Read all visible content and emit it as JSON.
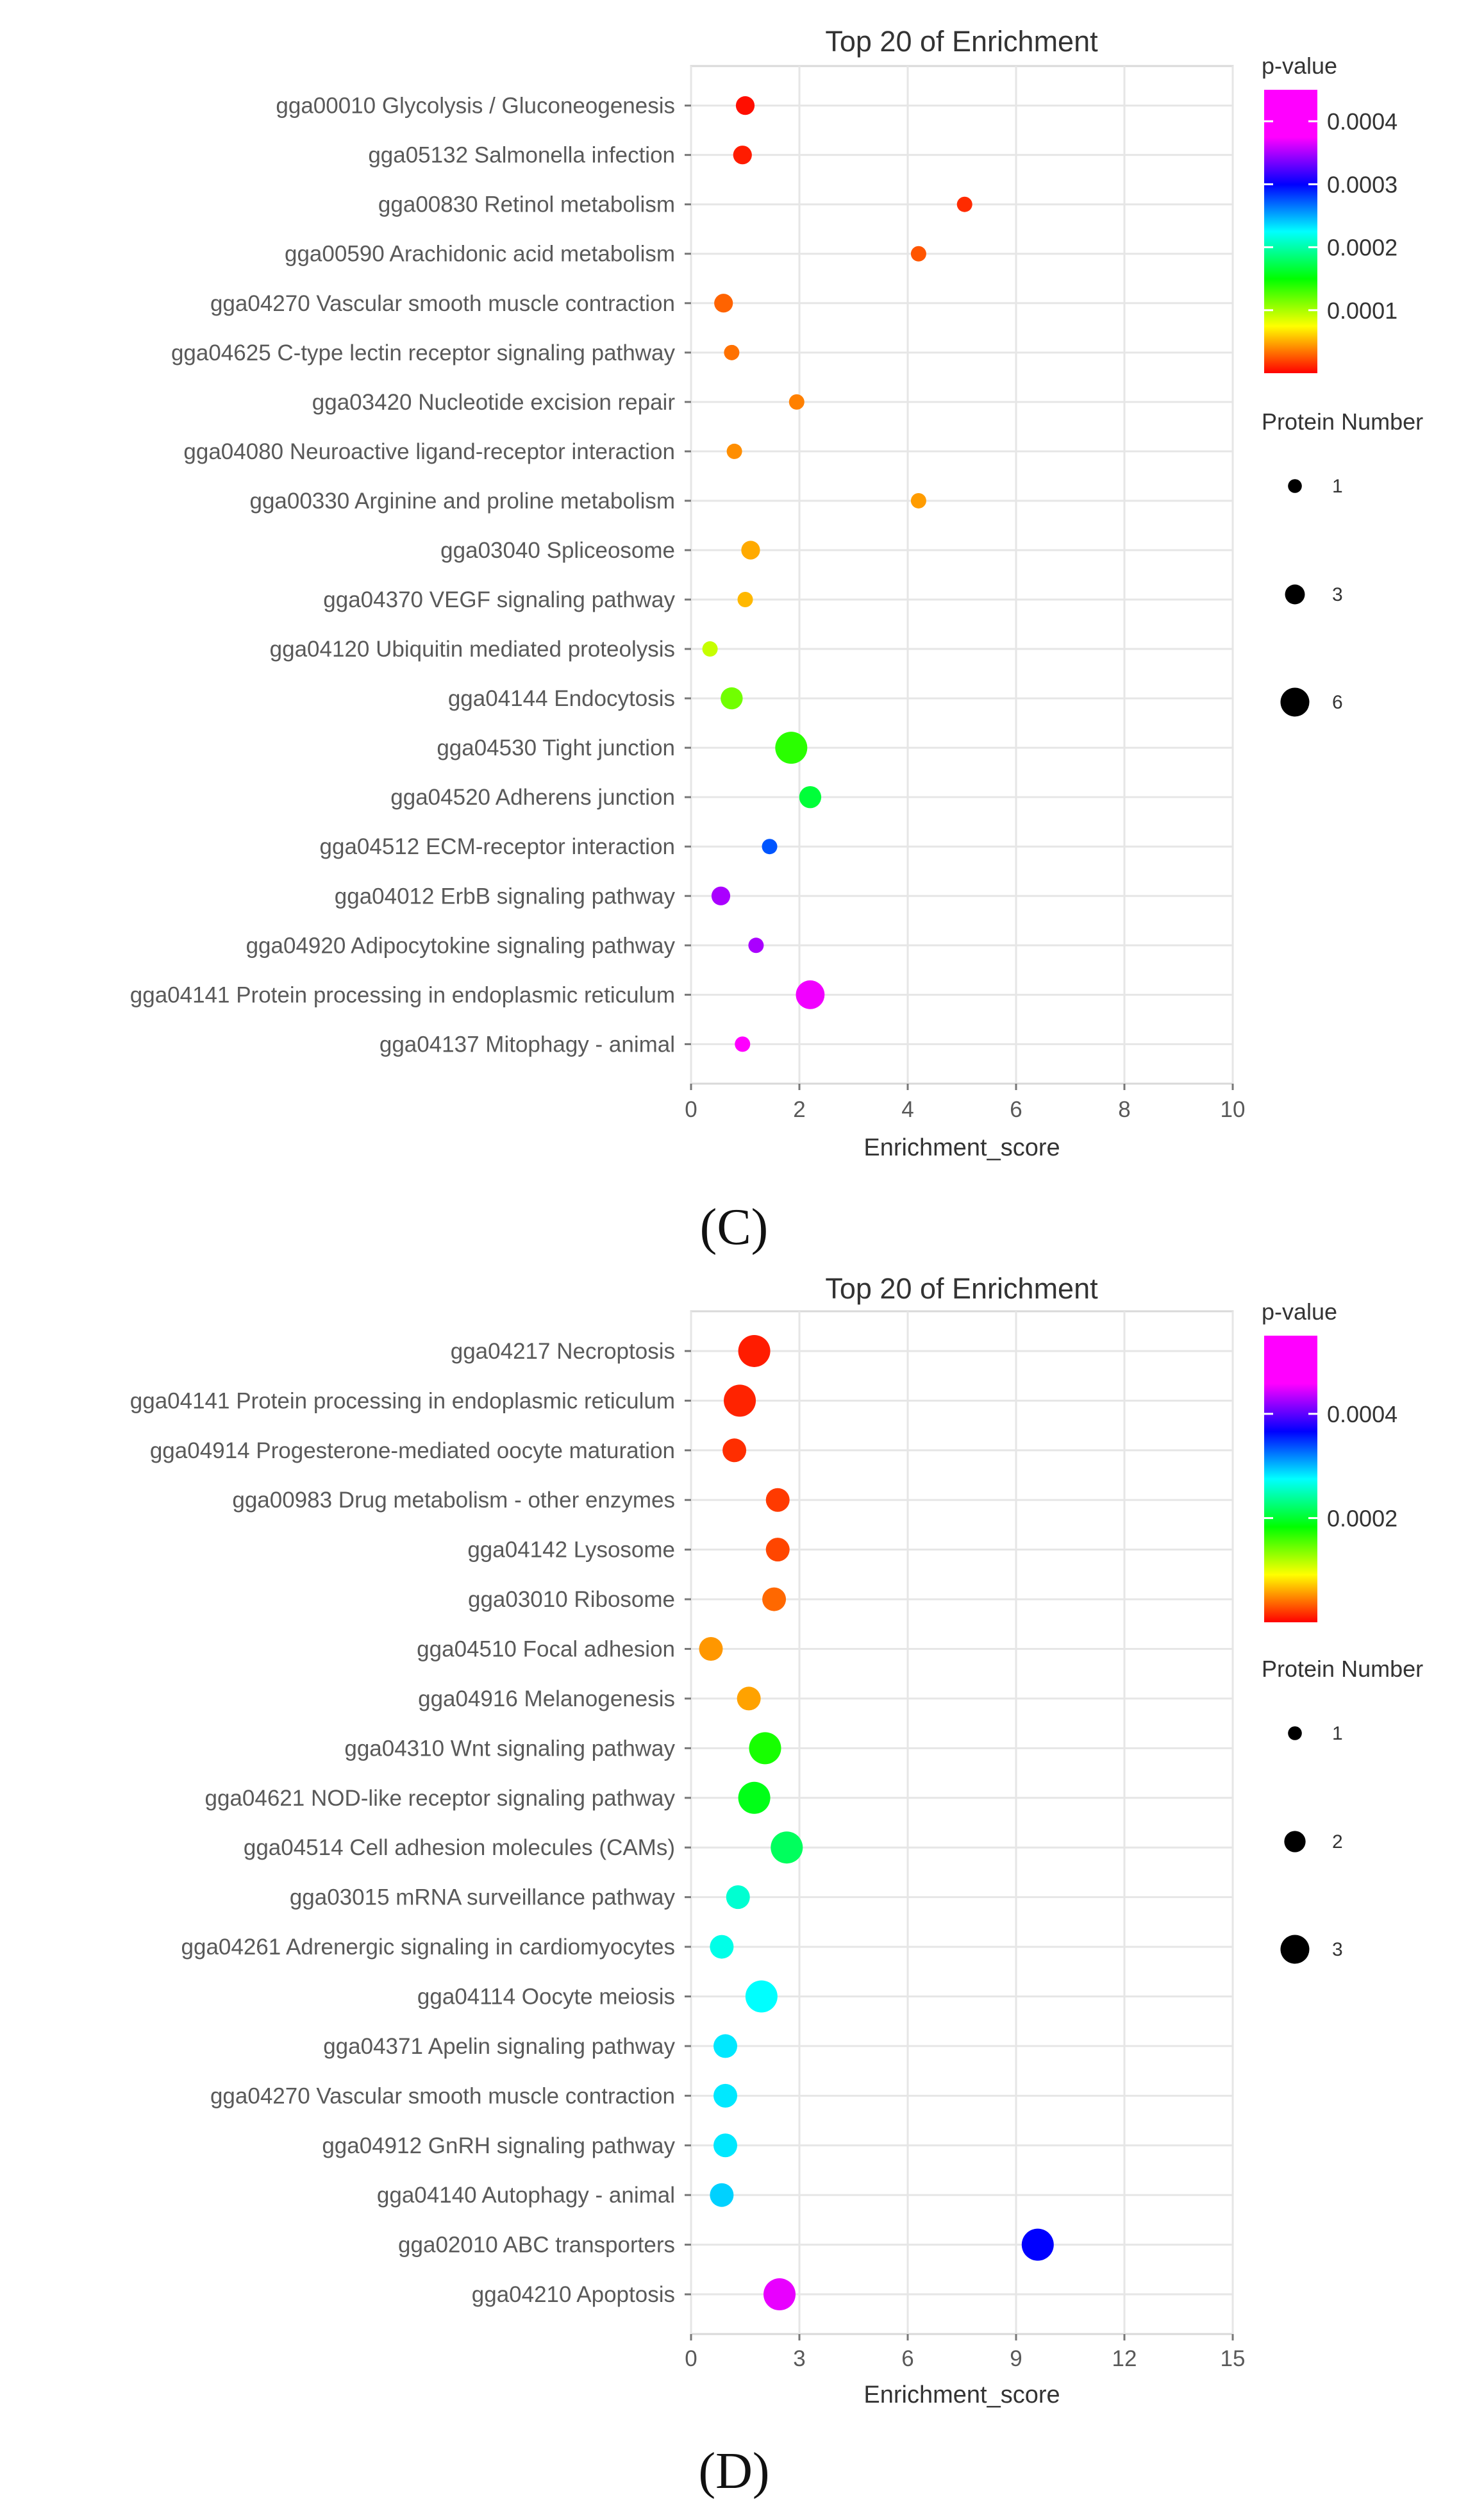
{
  "chart_data": [
    {
      "type": "scatter",
      "panel_label": "(C)",
      "title": "Top 20 of  Enrichment",
      "xlabel": "Enrichment_score",
      "ylabel": "",
      "xlim": [
        0,
        10
      ],
      "xticks": [
        0,
        2,
        4,
        6,
        8,
        10
      ],
      "grid": true,
      "legend_position": "right",
      "color_legend": {
        "title": "p-value",
        "min": 0.0,
        "max": 0.00045,
        "ticks": [
          {
            "value": 0.0001,
            "label": "0.0001"
          },
          {
            "value": 0.0002,
            "label": "0.0002"
          },
          {
            "value": 0.0003,
            "label": "0.0003"
          },
          {
            "value": 0.0004,
            "label": "0.0004"
          }
        ]
      },
      "size_legend": {
        "title": "Protein Number",
        "min": 1,
        "max": 6,
        "entries": [
          {
            "value": 1,
            "label": "1"
          },
          {
            "value": 3,
            "label": "3"
          },
          {
            "value": 6,
            "label": "6"
          }
        ]
      },
      "points": [
        {
          "term": "gga00010 Glycolysis / Gluconeogenesis",
          "x": 1.0,
          "pvalue": 5e-06,
          "proteins": 2
        },
        {
          "term": "gga05132 Salmonella infection",
          "x": 0.95,
          "pvalue": 1e-05,
          "proteins": 2
        },
        {
          "term": "gga00830 Retinol metabolism",
          "x": 5.05,
          "pvalue": 1.5e-05,
          "proteins": 1
        },
        {
          "term": "gga00590 Arachidonic acid metabolism",
          "x": 4.2,
          "pvalue": 3e-05,
          "proteins": 1
        },
        {
          "term": "gga04270 Vascular smooth muscle contraction",
          "x": 0.6,
          "pvalue": 3.5e-05,
          "proteins": 2
        },
        {
          "term": "gga04625 C-type lectin receptor signaling pathway",
          "x": 0.75,
          "pvalue": 4e-05,
          "proteins": 1
        },
        {
          "term": "gga03420 Nucleotide excision repair",
          "x": 1.95,
          "pvalue": 4.5e-05,
          "proteins": 1
        },
        {
          "term": "gga04080 Neuroactive ligand-receptor interaction",
          "x": 0.8,
          "pvalue": 5e-05,
          "proteins": 1
        },
        {
          "term": "gga00330 Arginine and proline metabolism",
          "x": 4.2,
          "pvalue": 5.5e-05,
          "proteins": 1
        },
        {
          "term": "gga03040 Spliceosome",
          "x": 1.1,
          "pvalue": 6e-05,
          "proteins": 2
        },
        {
          "term": "gga04370 VEGF signaling pathway",
          "x": 1.0,
          "pvalue": 6.5e-05,
          "proteins": 1
        },
        {
          "term": "gga04120 Ubiquitin mediated proteolysis",
          "x": 0.35,
          "pvalue": 0.00011,
          "proteins": 1
        },
        {
          "term": "gga04144 Endocytosis",
          "x": 0.75,
          "pvalue": 0.00014,
          "proteins": 3
        },
        {
          "term": "gga04530 Tight junction",
          "x": 1.85,
          "pvalue": 0.000165,
          "proteins": 6
        },
        {
          "term": "gga04520 Adherens junction",
          "x": 2.2,
          "pvalue": 0.0002,
          "proteins": 3
        },
        {
          "term": "gga04512 ECM-receptor interaction",
          "x": 1.45,
          "pvalue": 0.00033,
          "proteins": 1
        },
        {
          "term": "gga04012 ErbB signaling pathway",
          "x": 0.55,
          "pvalue": 0.00042,
          "proteins": 2
        },
        {
          "term": "gga04920 Adipocytokine signaling pathway",
          "x": 1.2,
          "pvalue": 0.00042,
          "proteins": 1
        },
        {
          "term": "gga04141 Protein processing in endoplasmic reticulum",
          "x": 2.2,
          "pvalue": 0.000445,
          "proteins": 5
        },
        {
          "term": "gga04137 Mitophagy - animal",
          "x": 0.95,
          "pvalue": 0.00045,
          "proteins": 1
        }
      ]
    },
    {
      "type": "scatter",
      "panel_label": "(D)",
      "title": "Top 20 of  Enrichment",
      "xlabel": "Enrichment_score",
      "ylabel": "",
      "xlim": [
        0,
        15
      ],
      "xticks": [
        0,
        3,
        6,
        9,
        12,
        15
      ],
      "grid": true,
      "legend_position": "right",
      "color_legend": {
        "title": "p-value",
        "min": 0.0,
        "max": 0.00055,
        "ticks": [
          {
            "value": 0.0002,
            "label": "0.0002"
          },
          {
            "value": 0.0004,
            "label": "0.0004"
          }
        ]
      },
      "size_legend": {
        "title": "Protein Number",
        "min": 1,
        "max": 3,
        "entries": [
          {
            "value": 1,
            "label": "1"
          },
          {
            "value": 2,
            "label": "2"
          },
          {
            "value": 3,
            "label": "3"
          }
        ]
      },
      "points": [
        {
          "term": "gga04217 Necroptosis",
          "x": 1.75,
          "pvalue": 1.2e-05,
          "proteins": 3
        },
        {
          "term": "gga04141 Protein processing in endoplasmic reticulum",
          "x": 1.35,
          "pvalue": 1.5e-05,
          "proteins": 3
        },
        {
          "term": "gga04914 Progesterone-mediated oocyte maturation",
          "x": 1.2,
          "pvalue": 2e-05,
          "proteins": 2
        },
        {
          "term": "gga00983 Drug metabolism - other enzymes",
          "x": 2.4,
          "pvalue": 2.5e-05,
          "proteins": 2
        },
        {
          "term": "gga04142 Lysosome",
          "x": 2.4,
          "pvalue": 3e-05,
          "proteins": 2
        },
        {
          "term": "gga03010 Ribosome",
          "x": 2.3,
          "pvalue": 4.5e-05,
          "proteins": 2
        },
        {
          "term": "gga04510 Focal adhesion",
          "x": 0.55,
          "pvalue": 6.5e-05,
          "proteins": 2
        },
        {
          "term": "gga04916 Melanogenesis",
          "x": 1.6,
          "pvalue": 7e-05,
          "proteins": 2
        },
        {
          "term": "gga04310 Wnt signaling pathway",
          "x": 2.05,
          "pvalue": 0.00021,
          "proteins": 3
        },
        {
          "term": "gga04621 NOD-like receptor signaling pathway",
          "x": 1.75,
          "pvalue": 0.00023,
          "proteins": 3
        },
        {
          "term": "gga04514 Cell adhesion molecules (CAMs)",
          "x": 2.65,
          "pvalue": 0.00026,
          "proteins": 3
        },
        {
          "term": "gga03015 mRNA surveillance pathway",
          "x": 1.3,
          "pvalue": 0.00031,
          "proteins": 2
        },
        {
          "term": "gga04261 Adrenergic signaling in cardiomyocytes",
          "x": 0.85,
          "pvalue": 0.00032,
          "proteins": 2
        },
        {
          "term": "gga04114 Oocyte meiosis",
          "x": 1.95,
          "pvalue": 0.00033,
          "proteins": 3
        },
        {
          "term": "gga04371 Apelin signaling pathway",
          "x": 0.95,
          "pvalue": 0.00034,
          "proteins": 2
        },
        {
          "term": "gga04270 Vascular smooth muscle contraction",
          "x": 0.95,
          "pvalue": 0.00034,
          "proteins": 2
        },
        {
          "term": "gga04912 GnRH signaling pathway",
          "x": 0.95,
          "pvalue": 0.00034,
          "proteins": 2
        },
        {
          "term": "gga04140 Autophagy - animal",
          "x": 0.85,
          "pvalue": 0.00035,
          "proteins": 2
        },
        {
          "term": "gga02010 ABC transporters",
          "x": 9.6,
          "pvalue": 0.00044,
          "proteins": 3
        },
        {
          "term": "gga04210 Apoptosis",
          "x": 2.45,
          "pvalue": 0.00054,
          "proteins": 3
        }
      ]
    }
  ]
}
